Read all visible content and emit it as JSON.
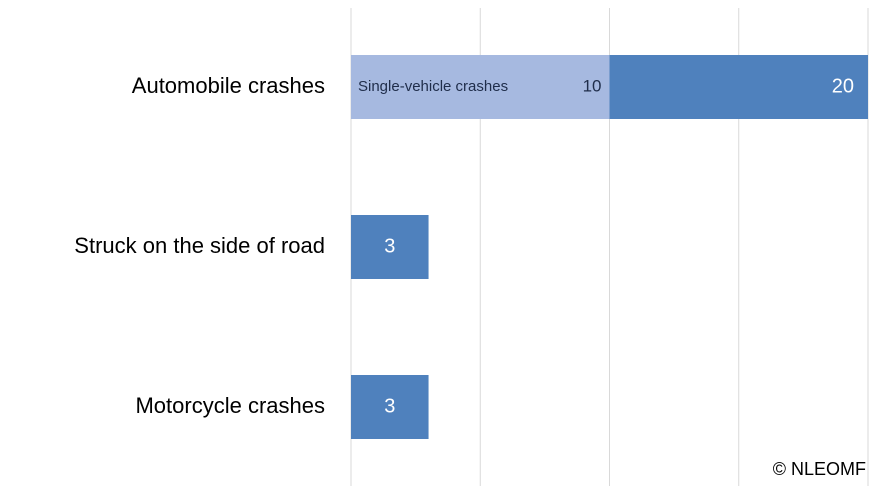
{
  "chart_data": {
    "type": "bar",
    "orientation": "horizontal",
    "categories": [
      "Automobile crashes",
      "Struck on the side of road",
      "Motorcycle crashes"
    ],
    "values": [
      20,
      3,
      3
    ],
    "color": "#4f81bd",
    "highlight": {
      "label": "Single-vehicle crashes",
      "values": [
        10,
        null,
        null
      ],
      "color": "#a6b9e0"
    },
    "xlim": [
      0,
      20
    ],
    "xticks": [
      0,
      5,
      10,
      15,
      20
    ],
    "grid": true,
    "annotation": "© NLEOMF"
  }
}
